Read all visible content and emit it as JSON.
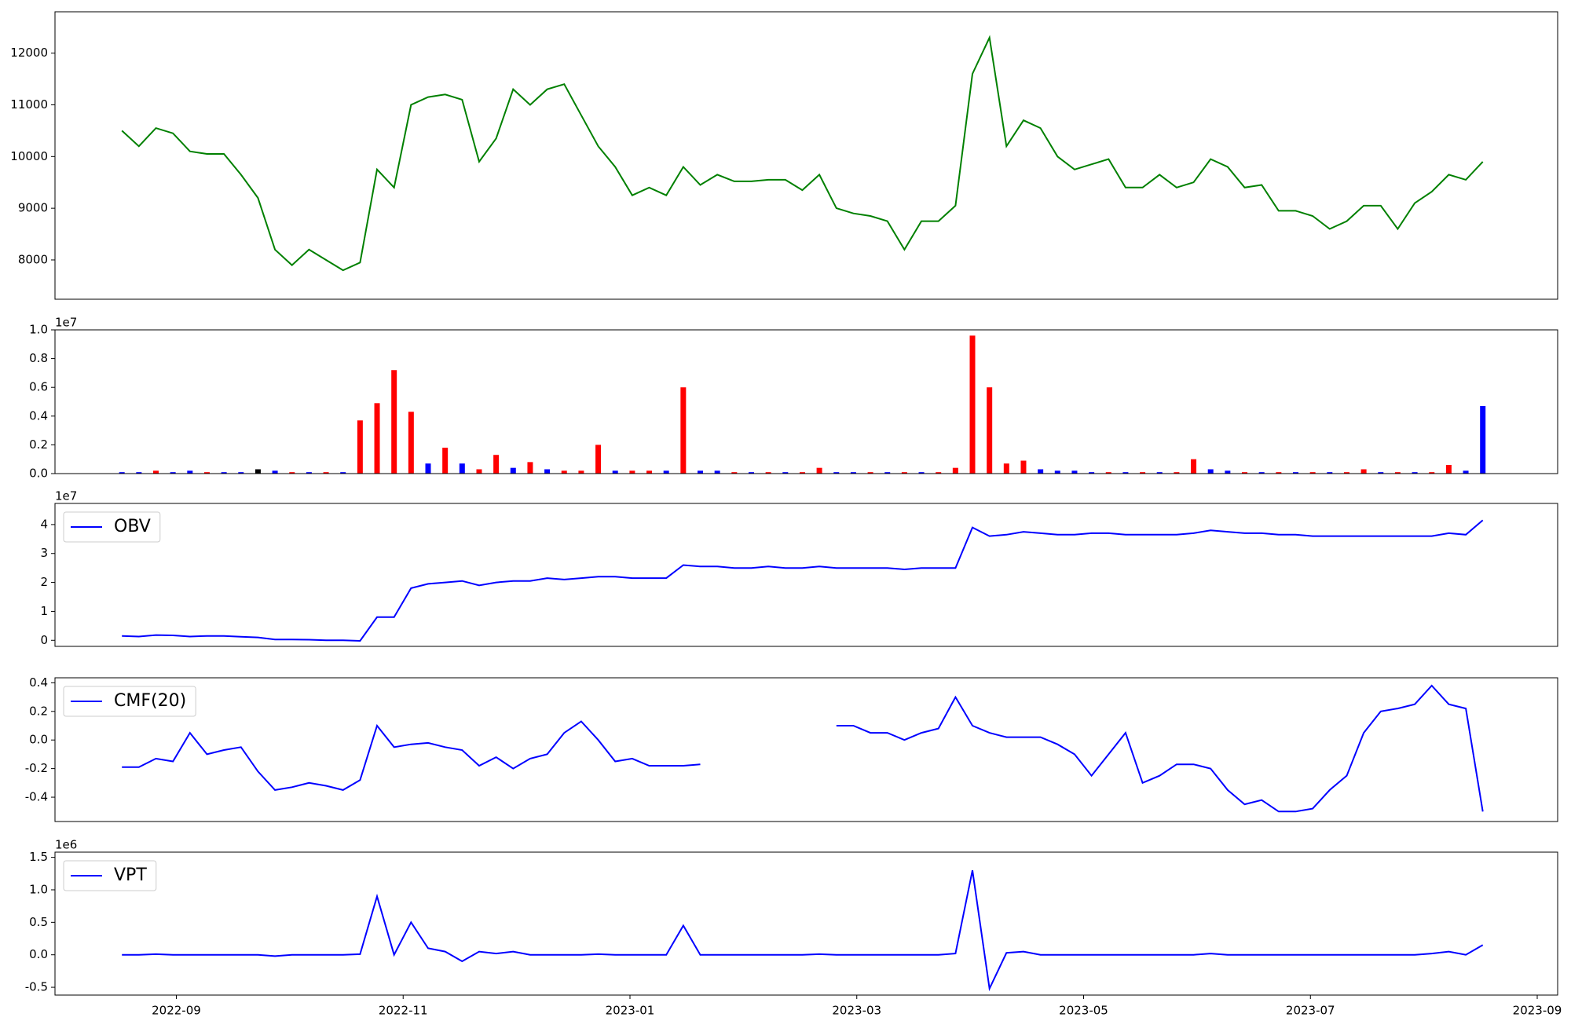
{
  "chart_data": [
    {
      "type": "line",
      "xlim": [
        -1.07,
        12.18
      ],
      "ylim": [
        7240,
        12800
      ],
      "yticks": [
        8000,
        9000,
        10000,
        11000,
        12000
      ],
      "color": "green",
      "x": [
        -0.48,
        -0.33,
        -0.18,
        -0.03,
        0.12,
        0.27,
        0.42,
        0.57,
        0.72,
        0.87,
        1.02,
        1.17,
        1.32,
        1.47,
        1.62,
        1.77,
        1.92,
        2.07,
        2.22,
        2.37,
        2.52,
        2.67,
        2.82,
        2.97,
        3.12,
        3.27,
        3.42,
        3.57,
        3.72,
        3.87,
        4.02,
        4.17,
        4.32,
        4.47,
        4.62,
        4.77,
        4.92,
        5.07,
        5.22,
        5.37,
        5.52,
        5.67,
        5.82,
        5.97,
        6.12,
        6.27,
        6.42,
        6.57,
        6.72,
        6.87,
        7.02,
        7.17,
        7.32,
        7.47,
        7.62,
        7.77,
        7.92,
        8.07,
        8.22,
        8.37,
        8.52,
        8.67,
        8.82,
        8.97,
        9.12,
        9.27,
        9.42,
        9.57,
        9.72,
        9.87,
        10.02,
        10.17,
        10.32,
        10.47,
        10.62,
        10.77,
        10.92,
        11.07,
        11.22,
        11.37,
        11.52
      ],
      "values": [
        10500,
        10200,
        10550,
        10450,
        10100,
        10050,
        10050,
        9650,
        9200,
        8200,
        7900,
        8200,
        8000,
        7800,
        7950,
        9750,
        9400,
        11000,
        11150,
        11200,
        11100,
        9900,
        10350,
        11300,
        11000,
        11300,
        11400,
        10800,
        10200,
        9800,
        9250,
        9400,
        9250,
        9800,
        9450,
        9650,
        9520,
        9520,
        9550,
        9550,
        9350,
        9650,
        9000,
        8900,
        8850,
        8750,
        8200,
        8750,
        8750,
        9050,
        11600,
        12300,
        10200,
        10700,
        10550,
        10000,
        9750,
        9850,
        9950,
        9400,
        9400,
        9650,
        9400,
        9500,
        9950,
        9800,
        9400,
        9450,
        8950,
        8950,
        8850,
        8600,
        8750,
        9050,
        9050,
        8600,
        9100,
        9320,
        9650,
        9550,
        9900
      ]
    },
    {
      "type": "bar",
      "xlim": [
        -1.07,
        12.18
      ],
      "ylim": [
        0,
        1
      ],
      "offset_label": "1e7",
      "yticks": [
        {
          "value": 0,
          "label": "0.0"
        },
        0.2,
        0.4,
        0.6,
        0.8,
        {
          "value": 1,
          "label": "1.0"
        }
      ],
      "x": [
        -0.48,
        -0.33,
        -0.18,
        -0.03,
        0.12,
        0.27,
        0.42,
        0.57,
        0.72,
        0.87,
        1.02,
        1.17,
        1.32,
        1.47,
        1.62,
        1.77,
        1.92,
        2.07,
        2.22,
        2.37,
        2.52,
        2.67,
        2.82,
        2.97,
        3.12,
        3.27,
        3.42,
        3.57,
        3.72,
        3.87,
        4.02,
        4.17,
        4.32,
        4.47,
        4.62,
        4.77,
        4.92,
        5.07,
        5.22,
        5.37,
        5.52,
        5.67,
        5.82,
        5.97,
        6.12,
        6.27,
        6.42,
        6.57,
        6.72,
        6.87,
        7.02,
        7.17,
        7.32,
        7.47,
        7.62,
        7.77,
        7.92,
        8.07,
        8.22,
        8.37,
        8.52,
        8.67,
        8.82,
        8.97,
        9.12,
        9.27,
        9.42,
        9.57,
        9.72,
        9.87,
        10.02,
        10.17,
        10.32,
        10.47,
        10.62,
        10.77,
        10.92,
        11.07,
        11.22,
        11.37,
        11.52
      ],
      "values": [
        0.01,
        0.01,
        0.02,
        0.01,
        0.02,
        0.01,
        0.01,
        0.01,
        0.03,
        0.02,
        0.01,
        0.01,
        0.01,
        0.01,
        0.37,
        0.49,
        0.72,
        0.43,
        0.07,
        0.18,
        0.07,
        0.03,
        0.13,
        0.04,
        0.08,
        0.03,
        0.02,
        0.02,
        0.2,
        0.02,
        0.02,
        0.02,
        0.02,
        0.6,
        0.02,
        0.02,
        0.01,
        0.01,
        0.01,
        0.01,
        0.01,
        0.04,
        0.01,
        0.01,
        0.01,
        0.01,
        0.01,
        0.01,
        0.01,
        0.04,
        0.96,
        0.6,
        0.07,
        0.09,
        0.03,
        0.02,
        0.02,
        0.01,
        0.01,
        0.01,
        0.01,
        0.01,
        0.01,
        0.1,
        0.03,
        0.02,
        0.01,
        0.01,
        0.01,
        0.01,
        0.01,
        0.01,
        0.01,
        0.03,
        0.01,
        0.01,
        0.01,
        0.01,
        0.06,
        0.02,
        0.47
      ],
      "colors": [
        "blue",
        "blue",
        "red",
        "blue",
        "blue",
        "red",
        "blue",
        "blue",
        "black",
        "blue",
        "red",
        "blue",
        "red",
        "blue",
        "red",
        "red",
        "red",
        "red",
        "blue",
        "red",
        "blue",
        "red",
        "red",
        "blue",
        "red",
        "blue",
        "red",
        "red",
        "red",
        "blue",
        "red",
        "red",
        "blue",
        "red",
        "blue",
        "blue",
        "red",
        "blue",
        "red",
        "blue",
        "red",
        "red",
        "blue",
        "blue",
        "red",
        "blue",
        "red",
        "blue",
        "red",
        "red",
        "red",
        "red",
        "red",
        "red",
        "blue",
        "blue",
        "blue",
        "blue",
        "red",
        "blue",
        "red",
        "blue",
        "red",
        "red",
        "blue",
        "blue",
        "red",
        "blue",
        "red",
        "blue",
        "red",
        "blue",
        "red",
        "red",
        "blue",
        "red",
        "blue",
        "red",
        "red",
        "blue",
        "blue"
      ]
    },
    {
      "type": "line",
      "xlim": [
        -1.07,
        12.18
      ],
      "ylim": [
        -0.21,
        4.73
      ],
      "offset_label": "1e7",
      "yticks": [
        0,
        1,
        2,
        3,
        4
      ],
      "legend": "upper left",
      "x": [
        -0.48,
        -0.33,
        -0.18,
        -0.03,
        0.12,
        0.27,
        0.42,
        0.57,
        0.72,
        0.87,
        1.02,
        1.17,
        1.32,
        1.47,
        1.62,
        1.77,
        1.92,
        2.07,
        2.22,
        2.37,
        2.52,
        2.67,
        2.82,
        2.97,
        3.12,
        3.27,
        3.42,
        3.57,
        3.72,
        3.87,
        4.02,
        4.17,
        4.32,
        4.47,
        4.62,
        4.77,
        4.92,
        5.07,
        5.22,
        5.37,
        5.52,
        5.67,
        5.82,
        5.97,
        6.12,
        6.27,
        6.42,
        6.57,
        6.72,
        6.87,
        7.02,
        7.17,
        7.32,
        7.47,
        7.62,
        7.77,
        7.92,
        8.07,
        8.22,
        8.37,
        8.52,
        8.67,
        8.82,
        8.97,
        9.12,
        9.27,
        9.42,
        9.57,
        9.72,
        9.87,
        10.02,
        10.17,
        10.32,
        10.47,
        10.62,
        10.77,
        10.92,
        11.07,
        11.22,
        11.37,
        11.52
      ],
      "series": [
        {
          "name": "OBV",
          "color": "blue",
          "values": [
            0.15,
            0.13,
            0.18,
            0.17,
            0.13,
            0.15,
            0.15,
            0.12,
            0.1,
            0.03,
            0.03,
            0.02,
            0,
            0,
            -0.02,
            0.8,
            0.8,
            1.8,
            1.95,
            2.0,
            2.05,
            1.9,
            2.0,
            2.05,
            2.05,
            2.15,
            2.1,
            2.15,
            2.2,
            2.2,
            2.15,
            2.15,
            2.15,
            2.6,
            2.55,
            2.55,
            2.5,
            2.5,
            2.55,
            2.5,
            2.5,
            2.55,
            2.5,
            2.5,
            2.5,
            2.5,
            2.45,
            2.5,
            2.5,
            2.5,
            3.9,
            3.6,
            3.65,
            3.75,
            3.7,
            3.65,
            3.65,
            3.7,
            3.7,
            3.65,
            3.65,
            3.65,
            3.65,
            3.7,
            3.8,
            3.75,
            3.7,
            3.7,
            3.65,
            3.65,
            3.6,
            3.6,
            3.6,
            3.6,
            3.6,
            3.6,
            3.6,
            3.6,
            3.7,
            3.65,
            4.15
          ]
        }
      ]
    },
    {
      "type": "line",
      "xlim": [
        -1.07,
        12.18
      ],
      "ylim": [
        -0.57,
        0.435
      ],
      "yticks": [
        -0.4,
        -0.2,
        {
          "value": 0,
          "label": "0.0"
        },
        0.2,
        0.4
      ],
      "legend": "upper left",
      "x": [
        -0.48,
        -0.33,
        -0.18,
        -0.03,
        0.12,
        0.27,
        0.42,
        0.57,
        0.72,
        0.87,
        1.02,
        1.17,
        1.32,
        1.47,
        1.62,
        1.77,
        1.92,
        2.07,
        2.22,
        2.37,
        2.52,
        2.67,
        2.82,
        2.97,
        3.12,
        3.27,
        3.42,
        3.57,
        3.72,
        3.87,
        4.02,
        4.17,
        4.32,
        4.47,
        4.62,
        4.77,
        4.92,
        5.07,
        5.22,
        5.37,
        5.52,
        5.67,
        5.82,
        5.97,
        6.12,
        6.27,
        6.42,
        6.57,
        6.72,
        6.87,
        7.02,
        7.17,
        7.32,
        7.47,
        7.62,
        7.77,
        7.92,
        8.07,
        8.22,
        8.37,
        8.52,
        8.67,
        8.82,
        8.97,
        9.12,
        9.27,
        9.42,
        9.57,
        9.72,
        9.87,
        10.02,
        10.17,
        10.32,
        10.47,
        10.62,
        10.77,
        10.92,
        11.07,
        11.22,
        11.37,
        11.52
      ],
      "series": [
        {
          "name": "CMF(20)",
          "color": "blue",
          "values": [
            -0.19,
            -0.19,
            -0.13,
            -0.15,
            0.05,
            -0.1,
            -0.07,
            -0.05,
            -0.22,
            -0.35,
            -0.33,
            -0.3,
            -0.32,
            -0.35,
            -0.28,
            0.1,
            -0.05,
            -0.03,
            -0.02,
            -0.05,
            -0.07,
            -0.18,
            -0.12,
            -0.2,
            -0.13,
            -0.1,
            0.05,
            0.13,
            0,
            -0.15,
            -0.13,
            -0.18,
            -0.18,
            -0.18,
            -0.17,
            null,
            null,
            null,
            null,
            null,
            null,
            null,
            0.1,
            0.1,
            0.05,
            0.05,
            0,
            0.05,
            0.08,
            0.3,
            0.1,
            0.05,
            0.02,
            0.02,
            0.02,
            -0.03,
            -0.1,
            -0.25,
            -0.1,
            0.05,
            -0.3,
            -0.25,
            -0.17,
            -0.17,
            -0.2,
            -0.35,
            -0.45,
            -0.42,
            -0.5,
            -0.5,
            -0.48,
            -0.35,
            -0.25,
            0.05,
            0.2,
            0.22,
            0.25,
            0.38,
            0.25,
            0.22,
            -0.5
          ]
        }
      ]
    },
    {
      "type": "line",
      "xlim": [
        -1.07,
        12.18
      ],
      "ylim": [
        -0.62,
        1.58
      ],
      "offset_label": "1e6",
      "yticks": [
        -0.5,
        {
          "value": 0,
          "label": "0.0"
        },
        0.5,
        {
          "value": 1,
          "label": "1.0"
        },
        1.5
      ],
      "legend": "upper left",
      "xticks": [
        {
          "value": 0,
          "label": "2022-09"
        },
        {
          "value": 2,
          "label": "2022-11"
        },
        {
          "value": 4,
          "label": "2023-01"
        },
        {
          "value": 6,
          "label": "2023-03"
        },
        {
          "value": 8,
          "label": "2023-05"
        },
        {
          "value": 10,
          "label": "2023-07"
        },
        {
          "value": 12,
          "label": "2023-09"
        }
      ],
      "x": [
        -0.48,
        -0.33,
        -0.18,
        -0.03,
        0.12,
        0.27,
        0.42,
        0.57,
        0.72,
        0.87,
        1.02,
        1.17,
        1.32,
        1.47,
        1.62,
        1.77,
        1.92,
        2.07,
        2.22,
        2.37,
        2.52,
        2.67,
        2.82,
        2.97,
        3.12,
        3.27,
        3.42,
        3.57,
        3.72,
        3.87,
        4.02,
        4.17,
        4.32,
        4.47,
        4.62,
        4.77,
        4.92,
        5.07,
        5.22,
        5.37,
        5.52,
        5.67,
        5.82,
        5.97,
        6.12,
        6.27,
        6.42,
        6.57,
        6.72,
        6.87,
        7.02,
        7.17,
        7.32,
        7.47,
        7.62,
        7.77,
        7.92,
        8.07,
        8.22,
        8.37,
        8.52,
        8.67,
        8.82,
        8.97,
        9.12,
        9.27,
        9.42,
        9.57,
        9.72,
        9.87,
        10.02,
        10.17,
        10.32,
        10.47,
        10.62,
        10.77,
        10.92,
        11.07,
        11.22,
        11.37,
        11.52
      ],
      "series": [
        {
          "name": "VPT",
          "color": "blue",
          "values": [
            0,
            0,
            0.01,
            0,
            0,
            0,
            0,
            0,
            0,
            -0.02,
            0,
            0,
            0,
            0,
            0.01,
            0.9,
            0,
            0.5,
            0.1,
            0.05,
            -0.1,
            0.05,
            0.02,
            0.05,
            0,
            0,
            0,
            0,
            0.01,
            0,
            0,
            0,
            0,
            0.45,
            0,
            0,
            0,
            0,
            0,
            0,
            0,
            0.01,
            0,
            0,
            0,
            0,
            0,
            0,
            0,
            0.02,
            1.3,
            -0.52,
            0.03,
            0.05,
            0,
            0,
            0,
            0,
            0,
            0,
            0,
            0,
            0,
            0,
            0.02,
            0,
            0,
            0,
            0,
            0,
            0,
            0,
            0,
            0,
            0,
            0,
            0,
            0.02,
            0.05,
            0,
            0.15
          ]
        }
      ]
    }
  ]
}
